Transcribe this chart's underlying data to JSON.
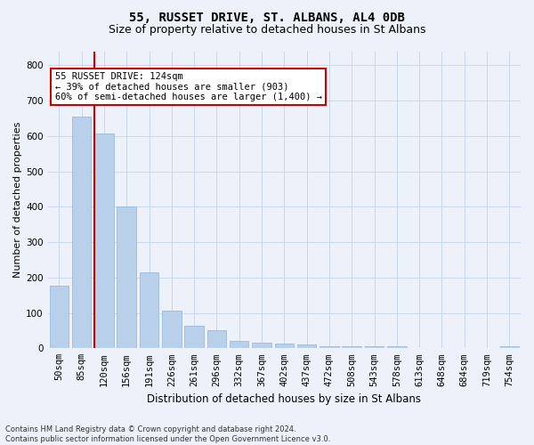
{
  "title1": "55, RUSSET DRIVE, ST. ALBANS, AL4 0DB",
  "title2": "Size of property relative to detached houses in St Albans",
  "xlabel": "Distribution of detached houses by size in St Albans",
  "ylabel": "Number of detached properties",
  "footer1": "Contains HM Land Registry data © Crown copyright and database right 2024.",
  "footer2": "Contains public sector information licensed under the Open Government Licence v3.0.",
  "categories": [
    "50sqm",
    "85sqm",
    "120sqm",
    "156sqm",
    "191sqm",
    "226sqm",
    "261sqm",
    "296sqm",
    "332sqm",
    "367sqm",
    "402sqm",
    "437sqm",
    "472sqm",
    "508sqm",
    "543sqm",
    "578sqm",
    "613sqm",
    "648sqm",
    "684sqm",
    "719sqm",
    "754sqm"
  ],
  "values": [
    178,
    655,
    608,
    400,
    215,
    107,
    63,
    50,
    20,
    17,
    14,
    12,
    7,
    7,
    5,
    5,
    0,
    0,
    0,
    0,
    5
  ],
  "bar_color": "#b8d0ea",
  "bar_edge_color": "#90b4d8",
  "grid_color": "#c8d8ec",
  "background_color": "#edf2fa",
  "red_line_color": "#cc0000",
  "red_line_bar_index": 2,
  "annotation_line1": "55 RUSSET DRIVE: 124sqm",
  "annotation_line2": "← 39% of detached houses are smaller (903)",
  "annotation_line3": "60% of semi-detached houses are larger (1,400) →",
  "annotation_box_color": "#ffffff",
  "annotation_box_edge": "#cc0000",
  "ylim_max": 840,
  "yticks": [
    0,
    100,
    200,
    300,
    400,
    500,
    600,
    700,
    800
  ],
  "title1_fontsize": 10,
  "title2_fontsize": 9,
  "xlabel_fontsize": 8.5,
  "ylabel_fontsize": 8,
  "tick_fontsize": 7.5,
  "footer_fontsize": 6,
  "annot_fontsize": 7.5
}
